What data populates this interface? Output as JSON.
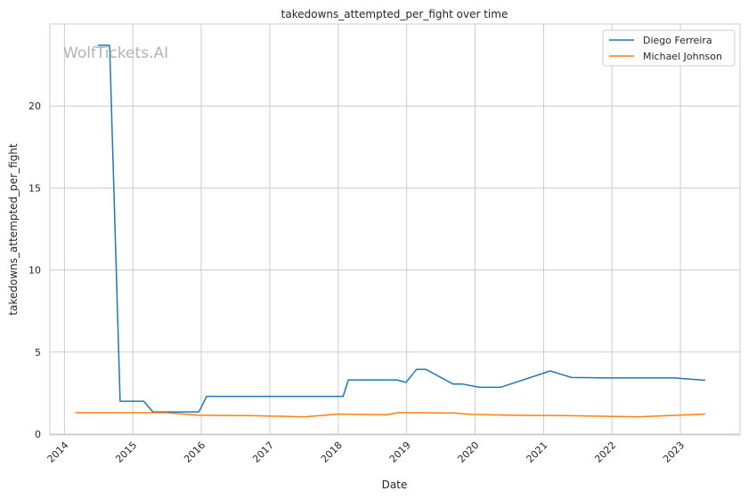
{
  "chart_data": {
    "type": "line",
    "title": "takedowns_attempted_per_fight over time",
    "xlabel": "Date",
    "ylabel": "takedowns_attempted_per_fight",
    "watermark": "WolfTickets.AI",
    "xlim": [
      "2013-10-15",
      "2023-11-15"
    ],
    "ylim": [
      0,
      25
    ],
    "x_ticks": [
      "2014",
      "2015",
      "2016",
      "2017",
      "2018",
      "2019",
      "2020",
      "2021",
      "2022",
      "2023"
    ],
    "y_ticks": [
      0,
      5,
      10,
      15,
      20
    ],
    "grid": true,
    "legend_position": "top-right",
    "series": [
      {
        "name": "Diego Ferreira",
        "color": "#1f77b4",
        "points": [
          [
            "2014-06-28",
            23.7
          ],
          [
            "2014-08-30",
            23.7
          ],
          [
            "2014-10-25",
            2.0
          ],
          [
            "2015-02-28",
            2.0
          ],
          [
            "2015-04-18",
            1.35
          ],
          [
            "2015-12-19",
            1.35
          ],
          [
            "2016-01-30",
            2.3
          ],
          [
            "2018-01-27",
            2.3
          ],
          [
            "2018-02-24",
            3.3
          ],
          [
            "2018-11-10",
            3.3
          ],
          [
            "2018-12-29",
            3.15
          ],
          [
            "2019-02-23",
            3.95
          ],
          [
            "2019-04-13",
            3.95
          ],
          [
            "2019-09-07",
            3.05
          ],
          [
            "2019-10-26",
            3.05
          ],
          [
            "2020-01-25",
            2.85
          ],
          [
            "2020-05-16",
            2.85
          ],
          [
            "2021-02-06",
            3.85
          ],
          [
            "2021-05-29",
            3.45
          ],
          [
            "2021-12-11",
            3.42
          ],
          [
            "2022-12-03",
            3.42
          ],
          [
            "2023-05-13",
            3.28
          ]
        ]
      },
      {
        "name": "Michael Johnson",
        "color": "#ff7f0e",
        "points": [
          [
            "2014-03-01",
            1.3
          ],
          [
            "2015-06-27",
            1.3
          ],
          [
            "2015-12-15",
            1.15
          ],
          [
            "2016-09-17",
            1.12
          ],
          [
            "2017-07-08",
            1.05
          ],
          [
            "2018-01-01",
            1.22
          ],
          [
            "2018-09-15",
            1.18
          ],
          [
            "2018-11-17",
            1.3
          ],
          [
            "2019-03-23",
            1.3
          ],
          [
            "2019-09-14",
            1.28
          ],
          [
            "2019-12-14",
            1.2
          ],
          [
            "2020-06-25",
            1.15
          ],
          [
            "2021-05-01",
            1.12
          ],
          [
            "2022-05-21",
            1.05
          ],
          [
            "2023-05-13",
            1.22
          ]
        ]
      }
    ]
  }
}
